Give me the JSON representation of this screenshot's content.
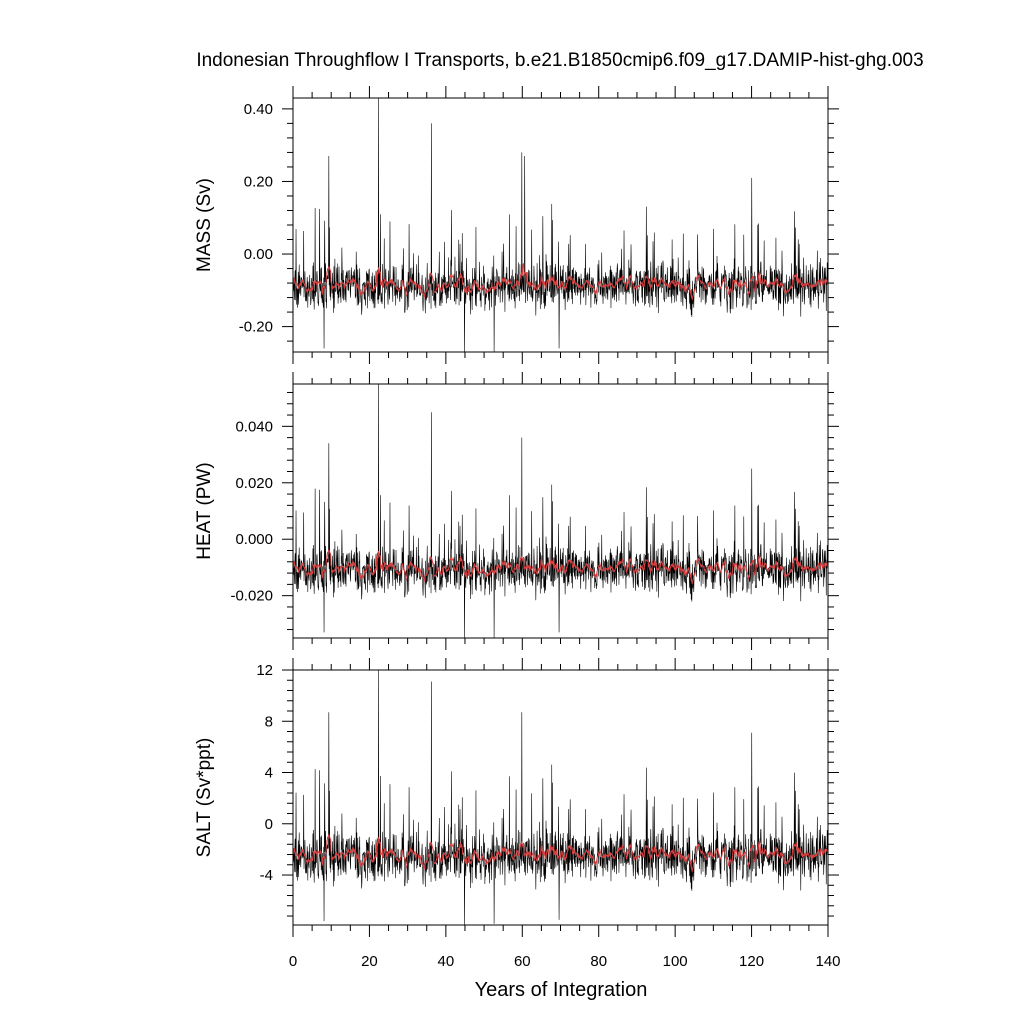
{
  "chart_data": {
    "title": "Indonesian Throughflow I Transports, b.e21.B1850cmip6.f09_g17.DAMIP-hist-ghg.003",
    "xlabel": "Years of Integration",
    "x_range": [
      0,
      140
    ],
    "x_ticks": [
      "0",
      "20",
      "40",
      "60",
      "80",
      "100",
      "120",
      "140"
    ],
    "x_tick_values": [
      0,
      20,
      40,
      60,
      80,
      100,
      120,
      140
    ],
    "series_colors": {
      "monthly": "#000000",
      "smoothed": "#d94040"
    },
    "panels": [
      {
        "type": "line",
        "ylabel": "MASS (Sv)",
        "ylim": [
          -0.27,
          0.43
        ],
        "y_ticks": [
          "0.40",
          "0.20",
          "0.00",
          "-0.20"
        ],
        "y_tick_values": [
          0.4,
          0.2,
          0.0,
          -0.2
        ],
        "mean": -0.09,
        "spread": 0.06,
        "spikes": [
          [
            22.3,
            0.43
          ],
          [
            36.2,
            0.36
          ],
          [
            59.8,
            0.28
          ],
          [
            9.3,
            0.27
          ],
          [
            120.0,
            0.21
          ],
          [
            60.6,
            0.27
          ]
        ],
        "dips": [
          [
            44.8,
            -0.27
          ],
          [
            52.6,
            -0.27
          ],
          [
            69.6,
            -0.26
          ],
          [
            8.1,
            -0.26
          ]
        ]
      },
      {
        "type": "line",
        "ylabel": "HEAT (PW)",
        "ylim": [
          -0.035,
          0.055
        ],
        "y_ticks": [
          "0.040",
          "0.020",
          "0.000",
          "-0.020"
        ],
        "y_tick_values": [
          0.04,
          0.02,
          0.0,
          -0.02
        ],
        "mean": -0.011,
        "spread": 0.008,
        "spikes": [
          [
            22.3,
            0.055
          ],
          [
            36.2,
            0.045
          ],
          [
            59.8,
            0.036
          ],
          [
            9.3,
            0.034
          ],
          [
            120.0,
            0.025
          ]
        ],
        "dips": [
          [
            44.8,
            -0.035
          ],
          [
            52.6,
            -0.035
          ],
          [
            8.1,
            -0.033
          ],
          [
            69.6,
            -0.033
          ]
        ]
      },
      {
        "type": "line",
        "ylabel": "SALT (Sv*ppt)",
        "ylim": [
          -7.9,
          12.0
        ],
        "y_ticks": [
          "12",
          "8",
          "4",
          "0",
          "-4"
        ],
        "y_tick_values": [
          12,
          8,
          4,
          0,
          -4
        ],
        "mean": -2.6,
        "spread": 1.9,
        "spikes": [
          [
            22.3,
            12.0
          ],
          [
            36.2,
            11.1
          ],
          [
            59.8,
            8.7
          ],
          [
            9.3,
            8.7
          ],
          [
            120.0,
            7.1
          ]
        ],
        "dips": [
          [
            44.8,
            -7.9
          ],
          [
            52.6,
            -7.8
          ],
          [
            8.1,
            -7.6
          ],
          [
            69.6,
            -7.5
          ]
        ]
      }
    ]
  }
}
